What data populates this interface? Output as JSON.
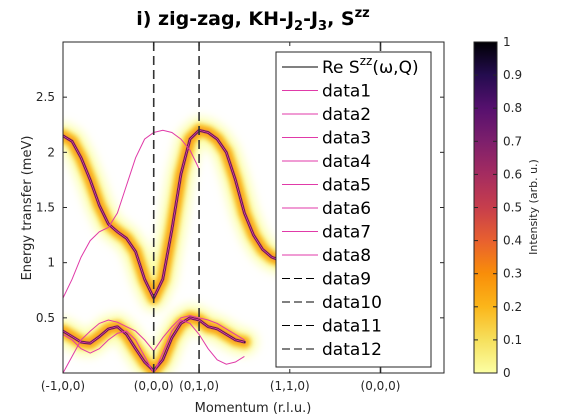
{
  "chart_data": {
    "type": "heatmap",
    "title": "i) zig-zag, KH-J",
    "title_sub1": "2",
    "title_mid": "-J",
    "title_sub2": "3",
    "title_mid2": ", S",
    "title_sup": "zz",
    "xlabel": "Momentum (r.l.u.)",
    "ylabel": "Energy transfer (meV)",
    "xlim": [
      0,
      4.2
    ],
    "ylim": [
      0,
      3.0
    ],
    "x_ticks": [
      {
        "pos": 0,
        "label": "(-1,0,0)"
      },
      {
        "pos": 1.0,
        "label": "(0,0,0)"
      },
      {
        "pos": 1.5,
        "label": "(0,1,0)"
      },
      {
        "pos": 2.5,
        "label": "(1,1,0)"
      },
      {
        "pos": 3.5,
        "label": "(0,0,0)"
      }
    ],
    "y_ticks": [
      0.5,
      1,
      1.5,
      2,
      2.5
    ],
    "y_tick_labels": [
      "0.5",
      "1",
      "1.5",
      "2",
      "2.5"
    ],
    "vertical_dashed_lines": [
      1.0,
      1.5,
      3.5
    ],
    "colorbar": {
      "label": "Intensity (arb. u.)",
      "range": [
        0,
        1
      ],
      "ticks": [
        "0",
        "0.1",
        "0.2",
        "0.3",
        "0.4",
        "0.5",
        "0.6",
        "0.7",
        "0.8",
        "0.9",
        "1"
      ],
      "colormap": "inferno-reversed"
    },
    "legend_entries": [
      {
        "label": "Re S",
        "sup": "zz",
        "suffix": "(ω,Q)",
        "style": "solid",
        "color": "#000000"
      },
      {
        "label": "data1",
        "style": "solid",
        "color": "#e03aa8"
      },
      {
        "label": "data2",
        "style": "solid",
        "color": "#e03aa8"
      },
      {
        "label": "data3",
        "style": "solid",
        "color": "#e03aa8"
      },
      {
        "label": "data4",
        "style": "solid",
        "color": "#e03aa8"
      },
      {
        "label": "data5",
        "style": "solid",
        "color": "#e03aa8"
      },
      {
        "label": "data6",
        "style": "solid",
        "color": "#e03aa8"
      },
      {
        "label": "data7",
        "style": "solid",
        "color": "#e03aa8"
      },
      {
        "label": "data8",
        "style": "solid",
        "color": "#e03aa8"
      },
      {
        "label": "data9",
        "style": "dashed",
        "color": "#000000"
      },
      {
        "label": "data10",
        "style": "dashed",
        "color": "#000000"
      },
      {
        "label": "data11",
        "style": "dashed",
        "color": "#000000"
      },
      {
        "label": "data12",
        "style": "dashed",
        "color": "#000000"
      }
    ],
    "series": [
      {
        "x": [
          0,
          0.1,
          0.2,
          0.3,
          0.4,
          0.5,
          0.6,
          0.7,
          0.8,
          0.9,
          1.0,
          1.1,
          1.2,
          1.3,
          1.4,
          1.5,
          1.6,
          1.7,
          1.8,
          1.9,
          2.0,
          2.1,
          2.2,
          2.3,
          2.4,
          2.5
        ],
        "y": [
          2.15,
          2.1,
          1.95,
          1.75,
          1.52,
          1.35,
          1.28,
          1.22,
          1.1,
          0.85,
          0.68,
          0.85,
          1.3,
          1.8,
          2.12,
          2.2,
          2.18,
          2.12,
          2.0,
          1.75,
          1.45,
          1.25,
          1.12,
          1.05,
          1.02,
          1.0
        ]
      },
      {
        "x": [
          0,
          0.1,
          0.2,
          0.3,
          0.4,
          0.5,
          0.6,
          0.7,
          0.8,
          0.9,
          1.0,
          1.1,
          1.2,
          1.3,
          1.4,
          1.5
        ],
        "y": [
          0.68,
          0.85,
          1.05,
          1.2,
          1.28,
          1.32,
          1.45,
          1.7,
          1.95,
          2.12,
          2.18,
          2.2,
          2.18,
          2.12,
          2.02,
          1.85
        ]
      },
      {
        "x": [
          0,
          0.1,
          0.2,
          0.3,
          0.4,
          0.5,
          0.6,
          0.7,
          0.8,
          0.9,
          1.0,
          1.1,
          1.2,
          1.3,
          1.4,
          1.5,
          1.6,
          1.7,
          1.8,
          1.9,
          2.0
        ],
        "y": [
          0.38,
          0.33,
          0.28,
          0.27,
          0.33,
          0.4,
          0.42,
          0.35,
          0.22,
          0.1,
          0.02,
          0.12,
          0.32,
          0.45,
          0.5,
          0.48,
          0.42,
          0.4,
          0.35,
          0.3,
          0.28
        ]
      },
      {
        "x": [
          0,
          0.1,
          0.2,
          0.3,
          0.4,
          0.5,
          0.6,
          0.7,
          0.8,
          0.9,
          1.0,
          1.1,
          1.2,
          1.3,
          1.4,
          1.5,
          1.6,
          1.7,
          1.8,
          1.9,
          2.0
        ],
        "y": [
          0.0,
          0.15,
          0.3,
          0.38,
          0.45,
          0.48,
          0.46,
          0.42,
          0.38,
          0.3,
          0.2,
          0.32,
          0.42,
          0.5,
          0.52,
          0.5,
          0.48,
          0.45,
          0.4,
          0.35,
          0.3
        ]
      },
      {
        "x": [
          0,
          0.1,
          0.2,
          0.3,
          0.4,
          0.5,
          0.6,
          0.7,
          0.8,
          0.9,
          1.0,
          1.1,
          1.2,
          1.3,
          1.4,
          1.5,
          1.6,
          1.7,
          1.8,
          1.9,
          2.0
        ],
        "y": [
          0.35,
          0.3,
          0.22,
          0.18,
          0.22,
          0.3,
          0.36,
          0.38,
          0.3,
          0.15,
          0.0,
          0.18,
          0.38,
          0.48,
          0.45,
          0.35,
          0.22,
          0.12,
          0.08,
          0.1,
          0.15
        ]
      }
    ]
  }
}
